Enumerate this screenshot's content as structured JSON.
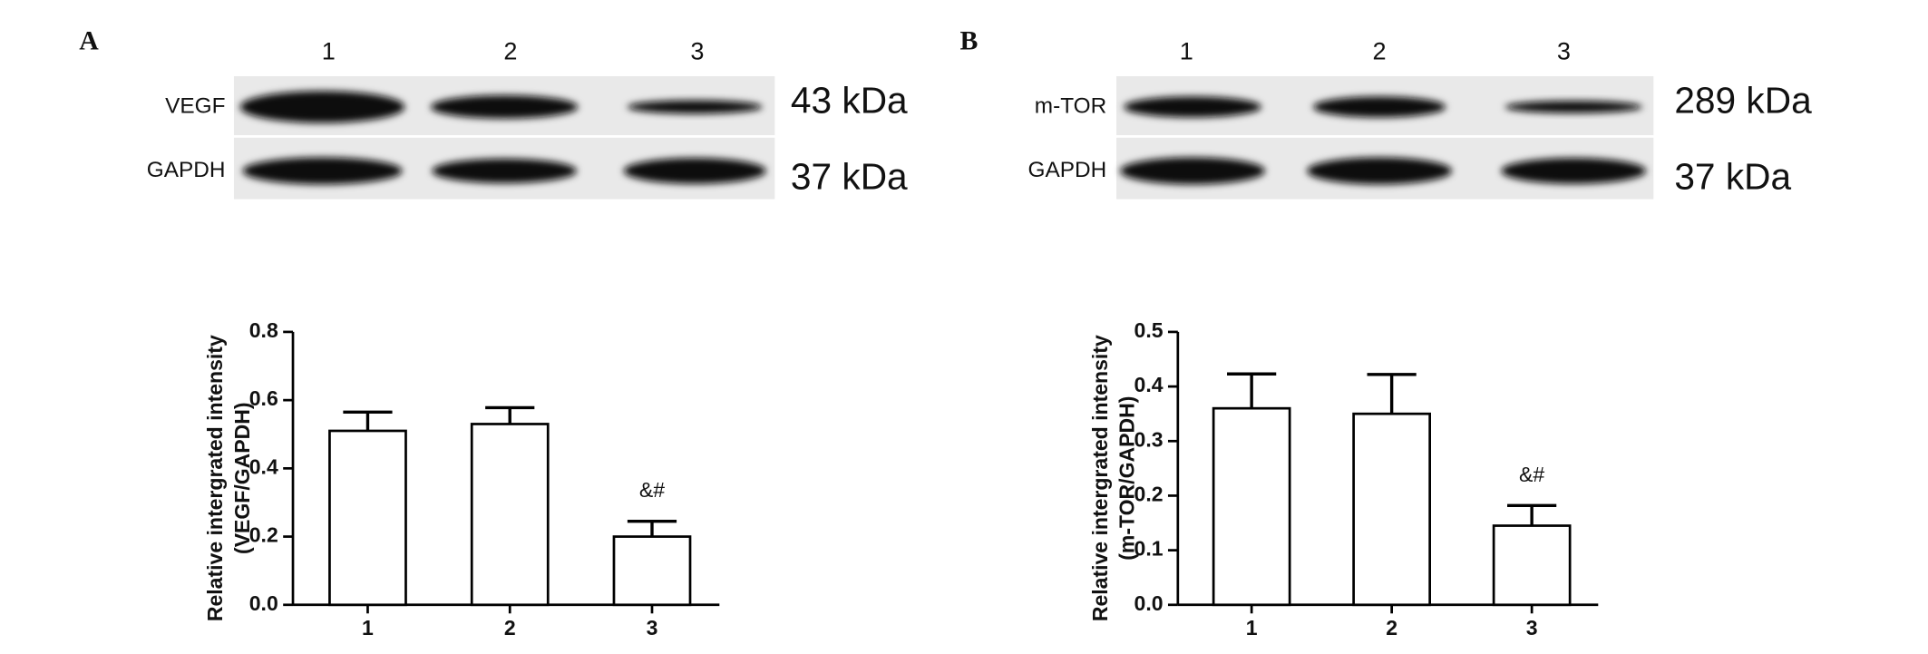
{
  "panels": [
    {
      "letter": "A",
      "lanes": [
        "1",
        "2",
        "3"
      ],
      "blots": [
        {
          "protein": "VEGF",
          "size": "43 kDa"
        },
        {
          "protein": "GAPDH",
          "size": "37 kDa"
        }
      ]
    },
    {
      "letter": "B",
      "lanes": [
        "1",
        "2",
        "3"
      ],
      "blots": [
        {
          "protein": "m-TOR",
          "size": "289 kDa"
        },
        {
          "protein": "GAPDH",
          "size": "37 kDa"
        }
      ]
    }
  ],
  "chart_data": [
    {
      "type": "bar",
      "ylabel": [
        "Relative intergrated intensity",
        "(VEGF/GAPDH)"
      ],
      "categories": [
        "1",
        "2",
        "3"
      ],
      "values": [
        0.51,
        0.53,
        0.2
      ],
      "errors": [
        0.055,
        0.048,
        0.045
      ],
      "annotations": [
        null,
        null,
        "&#"
      ],
      "color": "#ffffff",
      "ylim": [
        0,
        0.8
      ],
      "yticks": [
        {
          "value": 0,
          "label": "0.0"
        },
        0.2,
        0.4,
        0.6,
        0.8
      ]
    },
    {
      "type": "bar",
      "ylabel": [
        "Relative intergrated intensity",
        "(m-TOR/GAPDH)"
      ],
      "categories": [
        "1",
        "2",
        "3"
      ],
      "values": [
        0.36,
        0.35,
        0.145
      ],
      "errors": [
        0.063,
        0.072,
        0.037
      ],
      "annotations": [
        null,
        null,
        "&#"
      ],
      "color": "#ffffff",
      "ylim": [
        0,
        0.5
      ],
      "yticks": [
        {
          "value": 0,
          "label": "0.0"
        },
        0.1,
        0.2,
        0.3,
        0.4,
        {
          "value": 0.5,
          "label": "0.5"
        }
      ]
    }
  ]
}
